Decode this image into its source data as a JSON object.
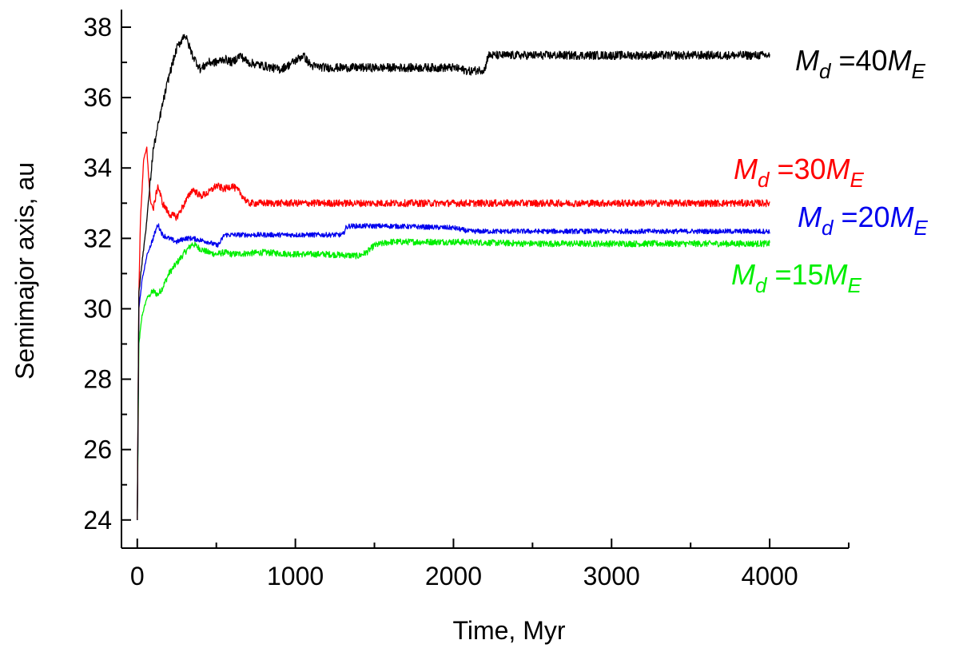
{
  "chart_data": {
    "type": "line",
    "title": "",
    "xlabel": "Time, Myr",
    "ylabel": "Semimajor axis, au",
    "xlim": [
      -100,
      4500
    ],
    "ylim": [
      23.2,
      38.5
    ],
    "xticks": [
      0,
      1000,
      2000,
      3000,
      4000
    ],
    "yticks": [
      24,
      26,
      28,
      30,
      32,
      34,
      36,
      38
    ],
    "xtick_labels": [
      "0",
      "1000",
      "2000",
      "3000",
      "4000"
    ],
    "ytick_labels": [
      "24",
      "26",
      "28",
      "30",
      "32",
      "34",
      "36",
      "38"
    ],
    "grid": false,
    "series": [
      {
        "name": "M_d=40M_E",
        "color": "#000000",
        "label": {
          "main": "M",
          "sub": "d",
          "mid": " =40",
          "main2": "M",
          "sub2": "E"
        },
        "x": [
          0,
          10,
          30,
          60,
          100,
          150,
          200,
          250,
          300,
          350,
          400,
          450,
          500,
          550,
          600,
          650,
          700,
          800,
          900,
          950,
          1050,
          1100,
          1200,
          1500,
          1800,
          2000,
          2100,
          2200,
          2210,
          2220,
          2500,
          3000,
          3500,
          4000
        ],
        "y": [
          24.0,
          30.5,
          31.3,
          32.5,
          34.5,
          35.6,
          36.6,
          37.4,
          37.8,
          37.2,
          36.8,
          37.0,
          37.0,
          37.1,
          37.0,
          37.2,
          37.0,
          36.9,
          36.8,
          36.9,
          37.2,
          36.9,
          36.85,
          36.85,
          36.85,
          36.85,
          36.75,
          36.8,
          37.05,
          37.2,
          37.2,
          37.2,
          37.2,
          37.2
        ],
        "noise": 0.12
      },
      {
        "name": "M_d=30M_E",
        "color": "#ff0000",
        "label": {
          "main": "M",
          "sub": "d",
          "mid": " =30",
          "main2": "M",
          "sub2": "E"
        },
        "x": [
          0,
          10,
          20,
          40,
          60,
          80,
          100,
          130,
          160,
          200,
          250,
          300,
          350,
          400,
          450,
          500,
          550,
          600,
          650,
          700,
          800,
          1000,
          1500,
          2000,
          2500,
          3000,
          3500,
          4000
        ],
        "y": [
          24.0,
          30.5,
          32.5,
          34.2,
          34.6,
          33.2,
          32.8,
          33.5,
          33.0,
          32.7,
          32.6,
          33.0,
          33.4,
          33.2,
          33.3,
          33.5,
          33.4,
          33.5,
          33.3,
          33.0,
          33.0,
          33.0,
          33.0,
          33.0,
          33.0,
          33.0,
          33.0,
          33.0
        ],
        "noise": 0.1
      },
      {
        "name": "M_d=20M_E",
        "color": "#0000ee",
        "label": {
          "main": "M",
          "sub": "d",
          "mid": " =20",
          "main2": "M",
          "sub2": "E"
        },
        "x": [
          0,
          10,
          30,
          60,
          100,
          130,
          160,
          200,
          250,
          300,
          350,
          400,
          450,
          500,
          520,
          550,
          800,
          1000,
          1300,
          1320,
          1340,
          1600,
          2000,
          2100,
          3000,
          4000
        ],
        "y": [
          24.0,
          30.0,
          30.8,
          31.5,
          32.0,
          32.4,
          32.1,
          32.0,
          31.9,
          32.0,
          32.0,
          31.95,
          31.9,
          31.8,
          31.85,
          32.1,
          32.1,
          32.1,
          32.1,
          32.3,
          32.35,
          32.35,
          32.3,
          32.2,
          32.2,
          32.2
        ],
        "noise": 0.07
      },
      {
        "name": "M_d=15M_E",
        "color": "#00ee00",
        "label": {
          "main": "M",
          "sub": "d",
          "mid": " =15",
          "main2": "M",
          "sub2": "E"
        },
        "x": [
          0,
          10,
          30,
          60,
          100,
          130,
          160,
          200,
          250,
          300,
          350,
          400,
          450,
          500,
          550,
          600,
          800,
          1000,
          1200,
          1400,
          1450,
          1500,
          1550,
          1600,
          2000,
          2500,
          3000,
          4000
        ],
        "y": [
          24.0,
          29.0,
          29.8,
          30.3,
          30.5,
          30.4,
          30.6,
          31.0,
          31.3,
          31.6,
          31.85,
          31.7,
          31.6,
          31.55,
          31.6,
          31.55,
          31.6,
          31.55,
          31.55,
          31.5,
          31.6,
          31.8,
          31.85,
          31.9,
          31.9,
          31.85,
          31.85,
          31.85
        ],
        "noise": 0.09
      }
    ]
  }
}
